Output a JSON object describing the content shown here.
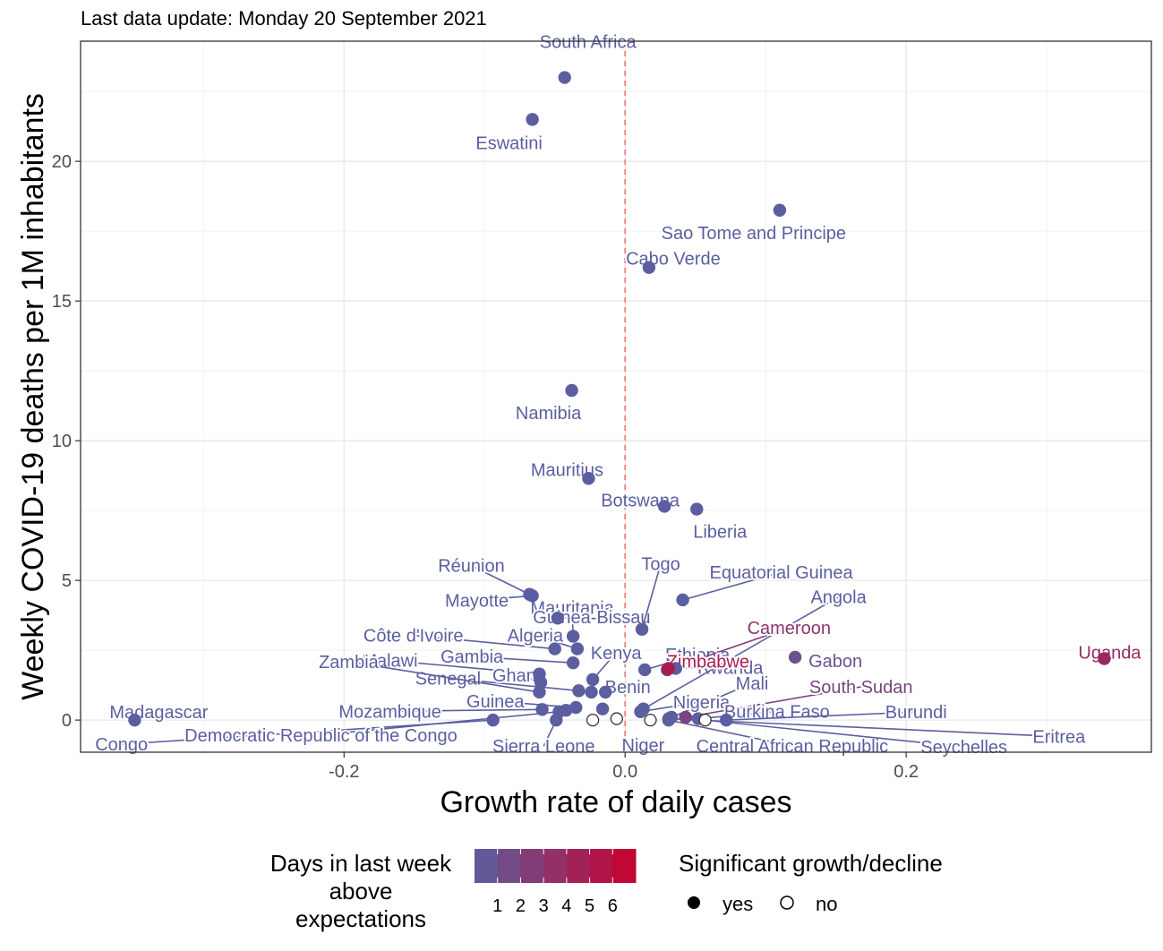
{
  "chart_data": {
    "type": "scatter",
    "subtitle": "Last data update: Monday 20 September 2021",
    "xlabel": "Growth rate of daily cases",
    "ylabel": "Weekly COVID-19 deaths per 1M inhabitants",
    "xlim": [
      -0.3875,
      0.3745
    ],
    "ylim": [
      -1.15,
      24.3
    ],
    "x_ticks": [
      -0.2,
      0.0,
      0.2
    ],
    "x_tick_labels": [
      "-0.2",
      "0.0",
      "0.2"
    ],
    "y_ticks": [
      0,
      5,
      10,
      15,
      20
    ],
    "y_tick_labels": [
      "0",
      "5",
      "10",
      "15",
      "20"
    ],
    "grid": true,
    "reference_line": {
      "x": 0,
      "color": "#f8766d",
      "style": "dashed"
    },
    "color_scale": {
      "low": "#5b5fa0",
      "high": "#c8002d",
      "min": 0,
      "max": 7
    },
    "legend_color": {
      "title_lines": [
        "Days in last week",
        "above",
        "expectations"
      ],
      "ticks": [
        1,
        2,
        3,
        4,
        5,
        6
      ],
      "tick_labels": [
        "1",
        "2",
        "3",
        "4",
        "5",
        "6"
      ]
    },
    "legend_shape": {
      "title": "Significant growth/decline",
      "items": [
        {
          "label": "yes",
          "filled": true
        },
        {
          "label": "no",
          "filled": false
        }
      ]
    },
    "points": [
      {
        "name": "South Africa",
        "x": -0.043,
        "y": 23.0,
        "days": 0,
        "significant": true
      },
      {
        "name": "Eswatini",
        "x": -0.066,
        "y": 21.5,
        "days": 0,
        "significant": true
      },
      {
        "name": "Sao Tome and Principe",
        "x": 0.11,
        "y": 18.25,
        "days": 0,
        "significant": true
      },
      {
        "name": "Cabo Verde",
        "x": 0.017,
        "y": 16.2,
        "days": 0,
        "significant": true
      },
      {
        "name": "Namibia",
        "x": -0.038,
        "y": 11.8,
        "days": 0,
        "significant": true
      },
      {
        "name": "Mauritius",
        "x": -0.026,
        "y": 8.65,
        "days": 0,
        "significant": true
      },
      {
        "name": "Botswana",
        "x": 0.028,
        "y": 7.65,
        "days": 0,
        "significant": true
      },
      {
        "name": "Liberia",
        "x": 0.051,
        "y": 7.55,
        "days": 0,
        "significant": true
      },
      {
        "name": "Réunion",
        "x": -0.068,
        "y": 4.5,
        "days": 0,
        "significant": true
      },
      {
        "name": "Mayotte",
        "x": -0.066,
        "y": 4.45,
        "days": 0,
        "significant": true
      },
      {
        "name": "Mauritania",
        "x": -0.037,
        "y": 3.0,
        "days": 0,
        "significant": true
      },
      {
        "name": "Guinea-Bissau",
        "x": -0.048,
        "y": 3.65,
        "days": 0,
        "significant": true
      },
      {
        "name": "Togo",
        "x": 0.012,
        "y": 3.25,
        "days": 0,
        "significant": true
      },
      {
        "name": "Equatorial Guinea",
        "x": 0.041,
        "y": 4.3,
        "days": 0,
        "significant": true
      },
      {
        "name": "Rwanda",
        "x": 0.036,
        "y": 1.85,
        "days": 0,
        "significant": true
      },
      {
        "name": "Angola",
        "x": 0.013,
        "y": 0.4,
        "days": 0,
        "significant": true
      },
      {
        "name": "Côte d'Ivoire",
        "x": -0.05,
        "y": 2.55,
        "days": 0,
        "significant": true
      },
      {
        "name": "Algeria",
        "x": -0.034,
        "y": 2.55,
        "days": 0,
        "significant": true
      },
      {
        "name": "Ethiopia",
        "x": 0.014,
        "y": 1.8,
        "days": 0,
        "significant": true
      },
      {
        "name": "Cameroon",
        "x": 0.03,
        "y": 1.8,
        "days": 3,
        "significant": true
      },
      {
        "name": "Malawi",
        "x": -0.061,
        "y": 1.65,
        "days": 0,
        "significant": true
      },
      {
        "name": "Gambia",
        "x": -0.037,
        "y": 2.05,
        "days": 0,
        "significant": true
      },
      {
        "name": "Kenya",
        "x": -0.023,
        "y": 1.45,
        "days": 0,
        "significant": true
      },
      {
        "name": "Zimbabwe",
        "x": 0.031,
        "y": 1.85,
        "days": 5,
        "significant": true
      },
      {
        "name": "Gabon",
        "x": 0.121,
        "y": 2.25,
        "days": 1,
        "significant": true
      },
      {
        "name": "Uganda",
        "x": 0.341,
        "y": 2.2,
        "days": 4,
        "significant": true
      },
      {
        "name": "Senegal",
        "x": -0.033,
        "y": 1.05,
        "days": 0,
        "significant": true
      },
      {
        "name": "Ghana",
        "x": -0.06,
        "y": 1.35,
        "days": 0,
        "significant": true
      },
      {
        "name": "Benin",
        "x": -0.014,
        "y": 1.0,
        "days": 0,
        "significant": true
      },
      {
        "name": "Zambia",
        "x": -0.061,
        "y": 1.0,
        "days": 0,
        "significant": true
      },
      {
        "name": "Mali",
        "x": 0.033,
        "y": 0.1,
        "days": 0,
        "significant": true
      },
      {
        "name": "South Sudan",
        "x": 0.043,
        "y": 0.1,
        "days": 2,
        "significant": true
      },
      {
        "name": "Mozambique",
        "x": -0.059,
        "y": 0.38,
        "days": 0,
        "significant": true
      },
      {
        "name": "Guinea",
        "x": -0.035,
        "y": 0.45,
        "days": 0,
        "significant": true
      },
      {
        "name": "Nigeria",
        "x": 0.011,
        "y": 0.3,
        "days": 0,
        "significant": true
      },
      {
        "name": "Burkina Faso",
        "x": 0.052,
        "y": 0.05,
        "days": 0,
        "significant": true
      },
      {
        "name": "Burundi",
        "x": 0.072,
        "y": 0.0,
        "days": 0,
        "significant": true
      },
      {
        "name": "Madagascar",
        "x": -0.349,
        "y": 0.0,
        "days": 0,
        "significant": true
      },
      {
        "name": "Congo",
        "x": -0.094,
        "y": 0.0,
        "days": 0,
        "significant": true
      },
      {
        "name": "Democratic Republic of the Congo",
        "x": -0.047,
        "y": 0.3,
        "days": 0,
        "significant": true
      },
      {
        "name": "Sierra Leone",
        "x": -0.049,
        "y": 0.0,
        "days": 0,
        "significant": true
      },
      {
        "name": "Niger",
        "x": 0.018,
        "y": 0.0,
        "days": 0,
        "significant": false
      },
      {
        "name": "Central African Republic",
        "x": 0.031,
        "y": 0.0,
        "days": 0,
        "significant": true
      },
      {
        "name": "Seychelles",
        "x": 0.057,
        "y": 0.0,
        "days": 0,
        "significant": false
      },
      {
        "name": "Eritrea",
        "x": 0.031,
        "y": 0.05,
        "days": 0,
        "significant": true
      },
      {
        "name": "",
        "x": -0.023,
        "y": 0.0,
        "days": 0,
        "significant": false
      },
      {
        "name": "",
        "x": -0.006,
        "y": 0.05,
        "days": 0,
        "significant": false
      },
      {
        "name": "",
        "x": -0.016,
        "y": 0.4,
        "days": 0,
        "significant": true
      },
      {
        "name": "",
        "x": -0.024,
        "y": 1.0,
        "days": 0,
        "significant": true
      },
      {
        "name": "",
        "x": -0.042,
        "y": 0.35,
        "days": 0,
        "significant": true
      }
    ]
  }
}
